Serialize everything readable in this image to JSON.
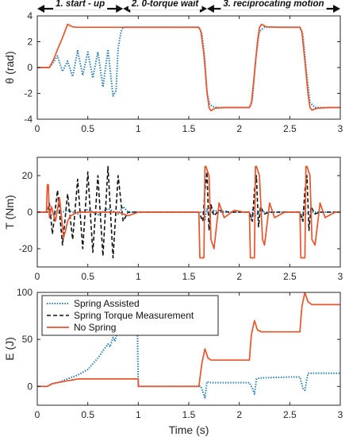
{
  "chart_data": [
    {
      "type": "line",
      "id": "theta",
      "ylabel": "θ (rad)",
      "xlim": [
        0,
        3
      ],
      "ylim": [
        -4,
        4
      ],
      "xticks": [
        "0",
        "0.5",
        "1",
        "1.5",
        "2",
        "2.5",
        "3"
      ],
      "yticks": [
        "-4",
        "-2",
        "0",
        "2",
        "4"
      ],
      "phases": [
        {
          "label": "1. start - up",
          "x0": 0,
          "x1": 0.85
        },
        {
          "label": "2. 0-torque wait",
          "x0": 0.85,
          "x1": 1.68
        },
        {
          "label": "3. reciprocating motion",
          "x0": 1.68,
          "x1": 3.0
        }
      ],
      "series": [
        {
          "name": "Spring Assisted",
          "style": "dotted",
          "color": "#1f77b4",
          "x": [
            0,
            0.12,
            0.15,
            0.2,
            0.25,
            0.3,
            0.35,
            0.4,
            0.45,
            0.5,
            0.55,
            0.6,
            0.65,
            0.7,
            0.75,
            0.78,
            0.8,
            0.83,
            0.85,
            0.88,
            1.0,
            1.2,
            1.4,
            1.6,
            1.63,
            1.66,
            1.68,
            1.71,
            1.75,
            1.8,
            2.0,
            2.1,
            2.13,
            2.16,
            2.2,
            2.25,
            2.5,
            2.6,
            2.63,
            2.66,
            2.7,
            2.75,
            3.0
          ],
          "y": [
            0,
            0,
            0.3,
            0.9,
            -0.3,
            0.5,
            -0.7,
            1.3,
            -0.6,
            1.2,
            -0.8,
            1.2,
            -1.5,
            1.4,
            -2.2,
            -1.8,
            1.5,
            2.8,
            3.12,
            3.12,
            3.12,
            3.12,
            3.12,
            3.12,
            2.6,
            0.5,
            -2.0,
            -2.9,
            -3.05,
            -3.1,
            -3.1,
            -3.1,
            -2.5,
            0.5,
            2.8,
            3.12,
            3.12,
            3.12,
            2.5,
            0,
            -2.7,
            -3.1,
            -3.1
          ]
        },
        {
          "name": "No Spring",
          "style": "solid",
          "color": "#e8542b",
          "x": [
            0,
            0.12,
            0.16,
            0.2,
            0.25,
            0.3,
            0.35,
            0.4,
            0.6,
            0.85,
            1.0,
            1.2,
            1.4,
            1.6,
            1.62,
            1.65,
            1.68,
            1.7,
            1.72,
            1.76,
            1.85,
            2.0,
            2.1,
            2.12,
            2.15,
            2.18,
            2.2,
            2.22,
            2.27,
            2.4,
            2.6,
            2.62,
            2.65,
            2.68,
            2.7,
            2.72,
            2.77,
            2.9,
            3.0
          ],
          "y": [
            0,
            0,
            0.6,
            1.4,
            2.3,
            3.35,
            3.15,
            3.12,
            3.12,
            3.12,
            3.12,
            3.12,
            3.12,
            3.12,
            2.8,
            1.0,
            -1.8,
            -3.1,
            -3.35,
            -3.15,
            -3.1,
            -3.1,
            -3.1,
            -2.8,
            -0.5,
            2.0,
            3.1,
            3.35,
            3.15,
            3.12,
            3.12,
            2.8,
            0.5,
            -2.0,
            -3.1,
            -3.3,
            -3.15,
            -3.1,
            -3.1
          ]
        }
      ]
    },
    {
      "type": "line",
      "id": "torque",
      "ylabel": "T (Nm)",
      "xlim": [
        0,
        3
      ],
      "ylim": [
        -30,
        30
      ],
      "xticks": [
        "0",
        "0.5",
        "1",
        "1.5",
        "2",
        "2.5",
        "3"
      ],
      "yticks": [
        "-20",
        "0",
        "20"
      ],
      "series": [
        {
          "name": "Spring Assisted",
          "style": "dotted",
          "color": "#1f77b4",
          "x": [
            0,
            0.1,
            0.12,
            0.14,
            0.18,
            0.22,
            0.3,
            0.4,
            0.5,
            0.6,
            0.7,
            0.8,
            0.85,
            0.9,
            1.0,
            1.64,
            1.66,
            1.68,
            1.7,
            1.75,
            1.8,
            2.1,
            2.12,
            2.14,
            2.16,
            2.2,
            2.6,
            2.62,
            2.64,
            2.66,
            2.7,
            3.0
          ],
          "y": [
            0,
            0,
            2,
            -1.5,
            1,
            -0.5,
            1,
            -1,
            1.5,
            -1.5,
            2,
            -1,
            3,
            0,
            0,
            0,
            -4,
            2,
            -2,
            1,
            0,
            0,
            -4,
            3,
            -2,
            0,
            0,
            -4,
            3,
            -1,
            0,
            0
          ]
        },
        {
          "name": "Spring Torque Measurement",
          "style": "dashed",
          "color": "#111111",
          "x": [
            0,
            0.1,
            0.12,
            0.15,
            0.2,
            0.25,
            0.3,
            0.35,
            0.4,
            0.45,
            0.5,
            0.55,
            0.6,
            0.65,
            0.7,
            0.75,
            0.8,
            0.85,
            0.9,
            1.0,
            1.6,
            1.64,
            1.66,
            1.68,
            1.7,
            1.72,
            1.75,
            1.8,
            1.9,
            2.1,
            2.13,
            2.15,
            2.17,
            2.19,
            2.21,
            2.25,
            2.3,
            2.4,
            2.6,
            2.63,
            2.65,
            2.67,
            2.69,
            2.71,
            2.75,
            2.8,
            2.9,
            3.0
          ],
          "y": [
            0,
            0,
            5,
            -12,
            12,
            -18,
            10,
            -15,
            18,
            -20,
            22,
            -22,
            20,
            -24,
            25,
            -25,
            20,
            -5,
            0,
            0,
            0,
            -5,
            12,
            22,
            -10,
            4,
            -2,
            1,
            0,
            0,
            -5,
            12,
            20,
            -8,
            3,
            -1,
            0,
            0,
            0,
            -5,
            12,
            20,
            -10,
            3,
            -1,
            0,
            0,
            0
          ]
        },
        {
          "name": "No Spring",
          "style": "solid",
          "color": "#e8542b",
          "x": [
            0,
            0.09,
            0.1,
            0.11,
            0.12,
            0.14,
            0.18,
            0.22,
            0.26,
            0.28,
            0.3,
            0.33,
            0.4,
            0.5,
            0.6,
            0.7,
            0.8,
            0.85,
            0.9,
            1.0,
            1.6,
            1.61,
            1.62,
            1.65,
            1.66,
            1.67,
            1.7,
            1.72,
            1.75,
            1.8,
            1.85,
            1.95,
            2.05,
            2.1,
            2.11,
            2.12,
            2.15,
            2.16,
            2.17,
            2.2,
            2.23,
            2.25,
            2.3,
            2.35,
            2.45,
            2.6,
            2.61,
            2.62,
            2.65,
            2.66,
            2.67,
            2.7,
            2.72,
            2.75,
            2.8,
            2.85,
            2.95,
            3.0
          ],
          "y": [
            0,
            0,
            15,
            15,
            -3,
            3,
            -5,
            8,
            -14,
            -10,
            -5,
            -2,
            0,
            0,
            0,
            0,
            0,
            -1,
            -2,
            0,
            0,
            -25,
            -25,
            -25,
            25,
            25,
            20,
            -15,
            -20,
            5,
            -3,
            1,
            0,
            0,
            -25,
            -25,
            -25,
            25,
            25,
            20,
            -15,
            -18,
            5,
            -3,
            0,
            0,
            -25,
            -25,
            -25,
            25,
            25,
            20,
            -15,
            -18,
            5,
            -3,
            0,
            0
          ]
        }
      ]
    },
    {
      "type": "line",
      "id": "energy",
      "ylabel": "E (J)",
      "xlabel": "Time (s)",
      "xlim": [
        0,
        3
      ],
      "ylim": [
        -20,
        100
      ],
      "xticks": [
        "0",
        "0.5",
        "1",
        "1.5",
        "2",
        "2.5",
        "3"
      ],
      "yticks": [
        "0",
        "50",
        "100"
      ],
      "legend": "top-left",
      "series": [
        {
          "name": "Spring Assisted",
          "style": "dotted",
          "color": "#1f77b4",
          "x": [
            0,
            0.1,
            0.15,
            0.2,
            0.3,
            0.4,
            0.5,
            0.55,
            0.6,
            0.65,
            0.7,
            0.72,
            0.75,
            0.77,
            0.8,
            0.82,
            0.85,
            0.9,
            0.99,
            1.0,
            1.6,
            1.62,
            1.66,
            1.68,
            1.72,
            1.8,
            2.0,
            2.1,
            2.13,
            2.15,
            2.17,
            2.2,
            2.5,
            2.6,
            2.63,
            2.65,
            2.68,
            2.7,
            3.0
          ],
          "y": [
            0,
            0,
            3,
            4,
            8,
            12,
            18,
            24,
            30,
            38,
            45,
            42,
            52,
            48,
            62,
            58,
            70,
            70,
            70,
            0,
            0,
            0,
            -12,
            5,
            4,
            4,
            4,
            4,
            -2,
            -8,
            8,
            9,
            10,
            10,
            -2,
            -4,
            14,
            14,
            14
          ]
        },
        {
          "name": "No Spring",
          "style": "solid",
          "color": "#e8542b",
          "x": [
            0,
            0.1,
            0.15,
            0.2,
            0.3,
            0.35,
            0.4,
            0.5,
            1.0,
            1.001,
            1.6,
            1.63,
            1.66,
            1.69,
            1.72,
            1.8,
            2.1,
            2.12,
            2.15,
            2.18,
            2.22,
            2.3,
            2.6,
            2.62,
            2.65,
            2.68,
            2.72,
            2.8,
            3.0
          ],
          "y": [
            0,
            0,
            3,
            4,
            6,
            7,
            8,
            8,
            8,
            0,
            0,
            25,
            40,
            30,
            28,
            28,
            28,
            55,
            70,
            60,
            58,
            58,
            58,
            85,
            100,
            90,
            87,
            87,
            87
          ]
        }
      ]
    }
  ]
}
